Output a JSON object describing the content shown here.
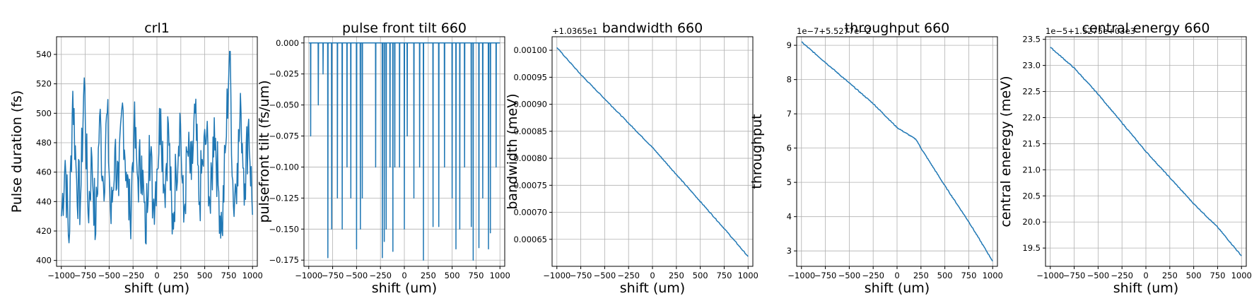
{
  "chart_data": [
    {
      "type": "line",
      "title": "crl1",
      "xlabel": "shift (um)",
      "ylabel": "Pulse duration (fs)",
      "offset_text": "",
      "xlim": [
        -1050,
        1050
      ],
      "ylim": [
        396,
        552
      ],
      "xticks": [
        -1000,
        -750,
        -500,
        -250,
        0,
        250,
        500,
        750,
        1000
      ],
      "yticks": [
        400,
        420,
        440,
        460,
        480,
        500,
        520,
        540
      ],
      "grid": true,
      "pattern": "noise",
      "color": "#1f77b4",
      "x": [
        -1000,
        -960,
        -920,
        -880,
        -840,
        -800,
        -760,
        -720,
        -680,
        -640,
        -600,
        -560,
        -520,
        -480,
        -440,
        -400,
        -360,
        -320,
        -280,
        -240,
        -200,
        -160,
        -120,
        -80,
        -40,
        0,
        40,
        80,
        120,
        160,
        200,
        240,
        280,
        320,
        360,
        400,
        440,
        480,
        520,
        560,
        600,
        640,
        680,
        720,
        760,
        800,
        840,
        880,
        920,
        960,
        1000
      ],
      "y": [
        430,
        468,
        412,
        515,
        455,
        440,
        524,
        432,
        470,
        418,
        498,
        452,
        500,
        425,
        476,
        444,
        507,
        460,
        428,
        490,
        455,
        471,
        412,
        485,
        438,
        462,
        503,
        447,
        493,
        418,
        461,
        500,
        426,
        474,
        455,
        500,
        438,
        466,
        485,
        432,
        497,
        451,
        420,
        478,
        546,
        437,
        466,
        500,
        452,
        496,
        431
      ]
    },
    {
      "type": "line",
      "title": "pulse front tilt 660",
      "xlabel": "shift (um)",
      "ylabel": "pulsefront tilt (fs/um)",
      "offset_text": "",
      "xlim": [
        -1050,
        1050
      ],
      "ylim": [
        -0.18,
        0.005
      ],
      "xticks": [
        -1000,
        -750,
        -500,
        -250,
        0,
        250,
        500,
        750,
        1000
      ],
      "yticks": [
        0.0,
        -0.025,
        -0.05,
        -0.075,
        -0.1,
        -0.125,
        -0.15,
        -0.175
      ],
      "ytick_labels": [
        "0.000",
        "−0.025",
        "−0.050",
        "−0.075",
        "−0.100",
        "−0.125",
        "−0.150",
        "−0.175"
      ],
      "grid": true,
      "pattern": "spikes",
      "color": "#1f77b4",
      "x": [
        -1000,
        -980,
        -900,
        -850,
        -800,
        -760,
        -700,
        -650,
        -600,
        -560,
        -500,
        -460,
        -440,
        -300,
        -230,
        -210,
        -190,
        -150,
        -120,
        -100,
        -50,
        0,
        30,
        100,
        160,
        200,
        300,
        360,
        420,
        500,
        540,
        580,
        630,
        700,
        720,
        780,
        820,
        880,
        900,
        960,
        1000
      ],
      "y": [
        0.0,
        -0.075,
        -0.05,
        -0.025,
        -0.173,
        -0.15,
        -0.125,
        -0.15,
        -0.1,
        -0.125,
        -0.166,
        -0.15,
        -0.125,
        -0.1,
        -0.173,
        -0.16,
        -0.15,
        -0.1,
        -0.168,
        -0.1,
        -0.1,
        -0.15,
        -0.075,
        -0.125,
        -0.1,
        -0.175,
        -0.148,
        -0.148,
        -0.1,
        -0.125,
        -0.166,
        -0.15,
        -0.1,
        -0.148,
        -0.175,
        -0.165,
        -0.125,
        -0.166,
        -0.153,
        -0.1,
        0.0
      ]
    },
    {
      "type": "line",
      "title": "bandwidth 660",
      "xlabel": "shift (um)",
      "ylabel": "bandwidth (meV)",
      "offset_text": "+1.0365e1",
      "xlim": [
        -1050,
        1050
      ],
      "ylim": [
        0.0006,
        0.001025
      ],
      "xticks": [
        -1000,
        -750,
        -500,
        -250,
        0,
        250,
        500,
        750,
        1000
      ],
      "yticks": [
        0.00065,
        0.0007,
        0.00075,
        0.0008,
        0.00085,
        0.0009,
        0.00095,
        0.001
      ],
      "ytick_labels": [
        "0.00065",
        "0.00070",
        "0.00075",
        "0.00080",
        "0.00085",
        "0.00090",
        "0.00095",
        "0.00100"
      ],
      "grid": true,
      "pattern": "smooth",
      "color": "#1f77b4",
      "x": [
        -1000,
        -750,
        -500,
        -250,
        0,
        250,
        500,
        750,
        1000
      ],
      "y": [
        0.001005,
        0.000955,
        0.00091,
        0.000865,
        0.00082,
        0.00077,
        0.00072,
        0.00067,
        0.000618
      ]
    },
    {
      "type": "line",
      "title": "throughput 660",
      "xlabel": "shift (um)",
      "ylabel": "throughput",
      "offset_text": "1e−7+5.5277e−2",
      "xlim": [
        -1050,
        1050
      ],
      "ylim": [
        2.55,
        9.25
      ],
      "xticks": [
        -1000,
        -750,
        -500,
        -250,
        0,
        250,
        500,
        750,
        1000
      ],
      "yticks": [
        3,
        4,
        5,
        6,
        7,
        8,
        9
      ],
      "grid": true,
      "pattern": "smooth",
      "color": "#1f77b4",
      "x": [
        -1000,
        -750,
        -500,
        -250,
        0,
        200,
        250,
        500,
        750,
        1000
      ],
      "y": [
        9.1,
        8.5,
        7.9,
        7.3,
        6.6,
        6.25,
        6.0,
        4.9,
        3.85,
        2.7
      ]
    },
    {
      "type": "line",
      "title": "central energy 660",
      "xlabel": "shift (um)",
      "ylabel": "central eneregy (meV)",
      "offset_text": "1e−5+1.5275e+03e3",
      "xlim": [
        -1050,
        1050
      ],
      "ylim": [
        19.15,
        23.55
      ],
      "xticks": [
        -1000,
        -750,
        -500,
        -250,
        0,
        250,
        500,
        750,
        1000
      ],
      "yticks": [
        19.5,
        20.0,
        20.5,
        21.0,
        21.5,
        22.0,
        22.5,
        23.0,
        23.5
      ],
      "ytick_labels": [
        "19.5",
        "20.0",
        "20.5",
        "21.0",
        "21.5",
        "22.0",
        "22.5",
        "23.0",
        "23.5"
      ],
      "grid": true,
      "pattern": "smooth",
      "color": "#1f77b4",
      "x": [
        -1000,
        -750,
        -500,
        -250,
        0,
        250,
        500,
        750,
        1000
      ],
      "y": [
        23.35,
        22.95,
        22.45,
        21.9,
        21.35,
        20.85,
        20.35,
        19.9,
        19.35
      ]
    }
  ]
}
